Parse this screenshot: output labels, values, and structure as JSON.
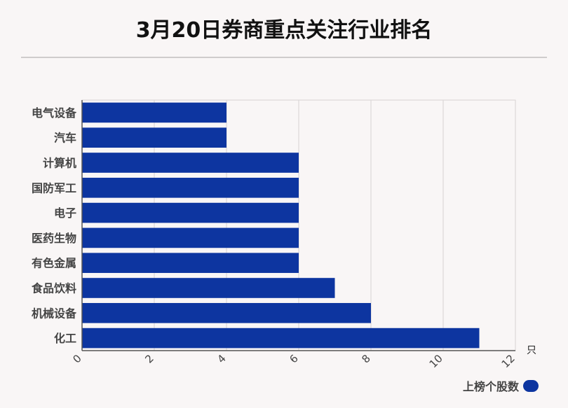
{
  "colors": {
    "bar": "#0d35a0",
    "background": "#f9f6f6",
    "grid": "#d6d3d3",
    "axis": "#555555",
    "label": "#444444"
  },
  "chart_data": {
    "type": "bar",
    "orientation": "horizontal",
    "title": "3月20日券商重点关注行业排名",
    "categories": [
      "电气设备",
      "汽车",
      "计算机",
      "国防军工",
      "电子",
      "医药生物",
      "有色金属",
      "食品饮料",
      "机械设备",
      "化工"
    ],
    "series": [
      {
        "name": "上榜个股数",
        "values": [
          4,
          4,
          6,
          6,
          6,
          6,
          6,
          7,
          8,
          11
        ]
      }
    ],
    "x_unit": "只",
    "xlim": [
      0,
      12
    ],
    "x_ticks": [
      "0",
      "2",
      "4",
      "6",
      "8",
      "10",
      "12"
    ],
    "grid": true,
    "legend": "bottom-right"
  }
}
